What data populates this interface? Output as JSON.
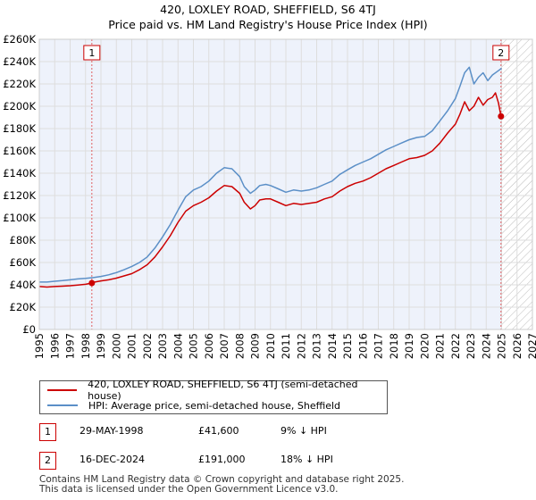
{
  "chart_data": {
    "type": "line",
    "title": "420, LOXLEY ROAD, SHEFFIELD, S6 4TJ",
    "subtitle": "Price paid vs. HM Land Registry's House Price Index (HPI)",
    "xlim": [
      1995,
      2027
    ],
    "ylim": [
      0,
      260000
    ],
    "y_ticks": [
      0,
      20000,
      40000,
      60000,
      80000,
      100000,
      120000,
      140000,
      160000,
      180000,
      200000,
      220000,
      240000,
      260000
    ],
    "y_tick_labels": [
      "£0",
      "£20K",
      "£40K",
      "£60K",
      "£80K",
      "£100K",
      "£120K",
      "£140K",
      "£160K",
      "£180K",
      "£200K",
      "£220K",
      "£240K",
      "£260K"
    ],
    "x_ticks": [
      1995,
      1996,
      1997,
      1998,
      1999,
      2000,
      2001,
      2002,
      2003,
      2004,
      2005,
      2006,
      2007,
      2008,
      2009,
      2010,
      2011,
      2012,
      2013,
      2014,
      2015,
      2016,
      2017,
      2018,
      2019,
      2020,
      2021,
      2022,
      2023,
      2024,
      2025,
      2026,
      2027
    ],
    "future_shade_start": 2025.0,
    "series": [
      {
        "name": "420, LOXLEY ROAD, SHEFFIELD, S6 4TJ (semi-detached house)",
        "color": "#cc0000",
        "x": [
          1995.0,
          1995.5,
          1996.0,
          1996.5,
          1997.0,
          1997.5,
          1998.0,
          1998.41,
          1998.6,
          1999.0,
          1999.5,
          2000.0,
          2000.5,
          2001.0,
          2001.5,
          2002.0,
          2002.5,
          2003.0,
          2003.5,
          2004.0,
          2004.5,
          2005.0,
          2005.5,
          2006.0,
          2006.5,
          2007.0,
          2007.5,
          2008.0,
          2008.3,
          2008.7,
          2009.0,
          2009.3,
          2009.7,
          2010.0,
          2010.5,
          2011.0,
          2011.5,
          2012.0,
          2012.5,
          2013.0,
          2013.5,
          2014.0,
          2014.5,
          2015.0,
          2015.5,
          2016.0,
          2016.5,
          2017.0,
          2017.5,
          2018.0,
          2018.5,
          2019.0,
          2019.5,
          2020.0,
          2020.5,
          2021.0,
          2021.5,
          2022.0,
          2022.3,
          2022.6,
          2022.9,
          2023.2,
          2023.5,
          2023.8,
          2024.1,
          2024.4,
          2024.6,
          2024.8,
          2024.96
        ],
        "values": [
          38500,
          38000,
          38500,
          38800,
          39200,
          39800,
          40500,
          41600,
          42500,
          43500,
          44500,
          46000,
          48000,
          50000,
          53500,
          58000,
          65000,
          74000,
          84000,
          96000,
          106000,
          111000,
          114000,
          118000,
          124000,
          129000,
          128000,
          122000,
          114000,
          108000,
          111000,
          116000,
          117000,
          117000,
          114000,
          111000,
          113000,
          112000,
          113000,
          114000,
          117000,
          119000,
          124000,
          128000,
          131000,
          133000,
          136000,
          140000,
          144000,
          147000,
          150000,
          153000,
          154000,
          156000,
          160000,
          167000,
          176000,
          184000,
          193000,
          204000,
          196000,
          200000,
          208000,
          201000,
          206000,
          208000,
          212000,
          203000,
          191000
        ]
      },
      {
        "name": "HPI: Average price, semi-detached house, Sheffield",
        "color": "#5b8fc7",
        "x": [
          1995.0,
          1995.5,
          1996.0,
          1996.5,
          1997.0,
          1997.5,
          1998.0,
          1998.5,
          1999.0,
          1999.5,
          2000.0,
          2000.5,
          2001.0,
          2001.5,
          2002.0,
          2002.5,
          2003.0,
          2003.5,
          2004.0,
          2004.5,
          2005.0,
          2005.5,
          2006.0,
          2006.5,
          2007.0,
          2007.5,
          2008.0,
          2008.3,
          2008.7,
          2009.0,
          2009.3,
          2009.7,
          2010.0,
          2010.5,
          2011.0,
          2011.5,
          2012.0,
          2012.5,
          2013.0,
          2013.5,
          2014.0,
          2014.5,
          2015.0,
          2015.5,
          2016.0,
          2016.5,
          2017.0,
          2017.5,
          2018.0,
          2018.5,
          2019.0,
          2019.5,
          2020.0,
          2020.5,
          2021.0,
          2021.5,
          2022.0,
          2022.3,
          2022.6,
          2022.9,
          2023.2,
          2023.5,
          2023.8,
          2024.1,
          2024.4,
          2024.7,
          2025.0
        ],
        "values": [
          42500,
          42500,
          43200,
          43800,
          44500,
          45300,
          45800,
          46500,
          47500,
          49000,
          51000,
          53500,
          56500,
          60000,
          65000,
          73000,
          83000,
          94000,
          107000,
          119000,
          125000,
          128000,
          133000,
          140000,
          145000,
          144000,
          137000,
          128000,
          122000,
          125000,
          129000,
          130000,
          129000,
          126000,
          123000,
          125000,
          124000,
          125000,
          127000,
          130000,
          133000,
          139000,
          143000,
          147000,
          150000,
          153000,
          157000,
          161000,
          164000,
          167000,
          170000,
          172000,
          173000,
          178000,
          187000,
          196000,
          207000,
          218000,
          230000,
          235000,
          220000,
          226000,
          230000,
          223000,
          228000,
          231000,
          234000
        ]
      }
    ],
    "sales": [
      {
        "id": "1",
        "date": "29-MAY-1998",
        "x": 1998.41,
        "price": 41600,
        "price_label": "£41,600",
        "hpi_note": "9% ↓ HPI"
      },
      {
        "id": "2",
        "date": "16-DEC-2024",
        "x": 2024.96,
        "price": 191000,
        "price_label": "£191,000",
        "hpi_note": "18% ↓ HPI"
      }
    ]
  },
  "legend": {
    "property_label": "420, LOXLEY ROAD, SHEFFIELD, S6 4TJ (semi-detached house)",
    "hpi_label": "HPI: Average price, semi-detached house, Sheffield"
  },
  "colors": {
    "property": "#cc0000",
    "hpi": "#5b8fc7",
    "grid": "#dddddd",
    "plot_bg": "#eef2fb"
  },
  "footer": {
    "line1": "Contains HM Land Registry data © Crown copyright and database right 2025.",
    "line2": "This data is licensed under the Open Government Licence v3.0."
  }
}
